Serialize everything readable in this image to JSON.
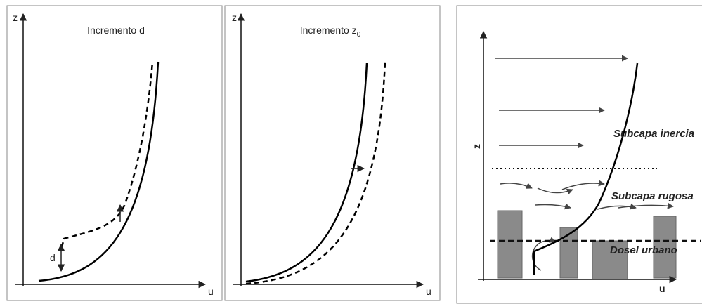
{
  "panels": [
    {
      "axis_y": "z",
      "axis_x": "u",
      "title": "Incremento d",
      "annotation": "d"
    },
    {
      "axis_y": "z",
      "axis_x": "u",
      "title": "Incremento z",
      "title_subscript": "0"
    },
    {
      "axis_y": "z",
      "axis_x": "u",
      "labels": [
        "Subcapa inercia",
        "Subcapa rugosa",
        "Dosel urbano"
      ]
    }
  ]
}
